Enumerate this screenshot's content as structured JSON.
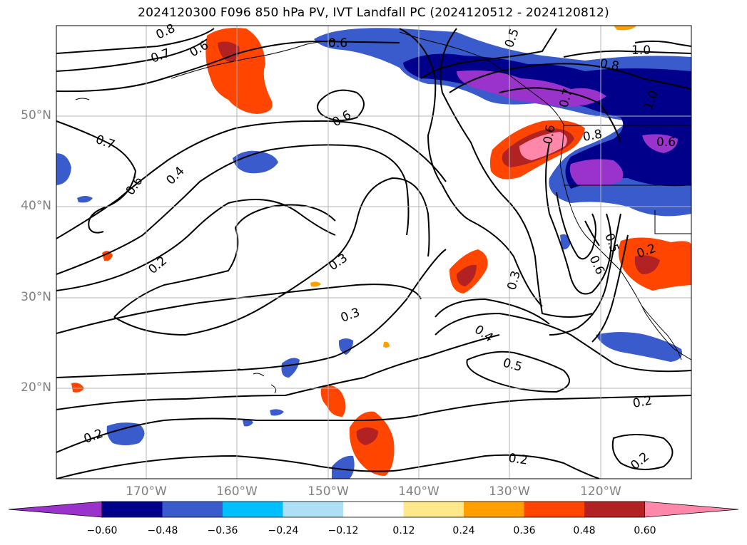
{
  "title": "2024120300 F096 850 hPa PV, IVT Landfall PC (2024120512 - 2024120812)",
  "latitude_labels": [
    "50°N",
    "40°N",
    "30°N",
    "20°N"
  ],
  "longitude_labels": [
    "170°W",
    "160°W",
    "150°W",
    "140°W",
    "130°W",
    "120°W"
  ],
  "contour_labels": [
    "0.8",
    "0.7",
    "0.6",
    "0.6",
    "1.0",
    "0.8",
    "0.5",
    "0.7",
    "1.0",
    "0.6",
    "0.8",
    "0.5",
    "0.6",
    "0.7",
    "0.6",
    "0.4",
    "0.2",
    "0.3",
    "0.3",
    "0.3",
    "0.4",
    "0.5",
    "0.2",
    "0.2",
    "0.2",
    "0.2",
    "0.2",
    "0.6",
    "0.6"
  ],
  "colorbar": {
    "ticks": [
      "−0.60",
      "−0.48",
      "−0.36",
      "−0.24",
      "−0.12",
      "0.12",
      "0.24",
      "0.36",
      "0.48",
      "0.60"
    ],
    "colors": [
      "#9933cc",
      "#00008b",
      "#3a5bcc",
      "#00bfff",
      "#aee0f5",
      "#ffffff",
      "#ffe88a",
      "#ffa000",
      "#ff4500",
      "#b22222",
      "#ff88aa"
    ]
  }
}
